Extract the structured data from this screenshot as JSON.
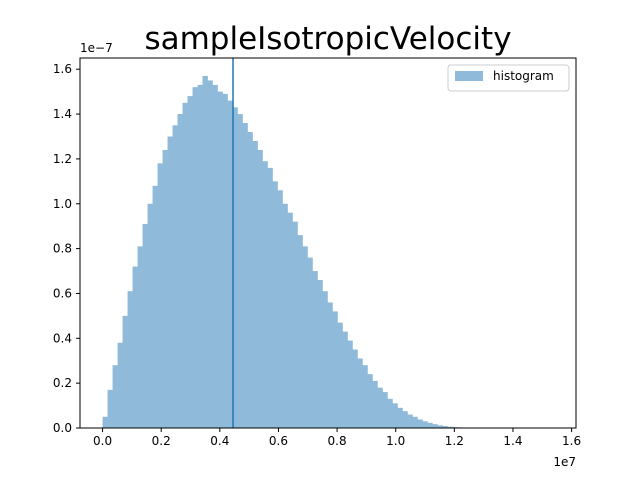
{
  "chart_data": {
    "type": "bar",
    "title": "sampleIsotropicVelocity",
    "xlabel": "",
    "ylabel": "",
    "x_offset_label": "1e7",
    "y_offset_label": "1e−7",
    "xlim": [
      -0.077,
      1.615
    ],
    "ylim": [
      0,
      1.65
    ],
    "x_ticks": [
      0.0,
      0.2,
      0.4,
      0.6,
      0.8,
      1.0,
      1.2,
      1.4,
      1.6
    ],
    "y_ticks": [
      0.0,
      0.2,
      0.4,
      0.6,
      0.8,
      1.0,
      1.2,
      1.4,
      1.6
    ],
    "x_tick_labels": [
      "0.0",
      "0.2",
      "0.4",
      "0.6",
      "0.8",
      "1.0",
      "1.2",
      "1.4",
      "1.6"
    ],
    "y_tick_labels": [
      "0.0",
      "0.2",
      "0.4",
      "0.6",
      "0.8",
      "1.0",
      "1.2",
      "1.4",
      "1.6"
    ],
    "bin_start": 0.0,
    "bin_width": 0.01705,
    "values": [
      0.05,
      0.17,
      0.28,
      0.38,
      0.5,
      0.61,
      0.72,
      0.81,
      0.91,
      1.0,
      1.08,
      1.18,
      1.24,
      1.3,
      1.35,
      1.4,
      1.45,
      1.48,
      1.52,
      1.53,
      1.57,
      1.55,
      1.53,
      1.5,
      1.49,
      1.46,
      1.43,
      1.4,
      1.36,
      1.32,
      1.28,
      1.24,
      1.19,
      1.16,
      1.1,
      1.06,
      1.0,
      0.96,
      0.92,
      0.86,
      0.81,
      0.76,
      0.7,
      0.66,
      0.61,
      0.56,
      0.52,
      0.47,
      0.43,
      0.39,
      0.35,
      0.31,
      0.28,
      0.24,
      0.21,
      0.18,
      0.16,
      0.13,
      0.11,
      0.09,
      0.075,
      0.06,
      0.05,
      0.038,
      0.03,
      0.023,
      0.017,
      0.012,
      0.009,
      0.006,
      0.004,
      0.003,
      0.002,
      0.0015,
      0.001,
      0.0008,
      0.0006,
      0.0004,
      0.0003,
      0.0002,
      0.0001,
      8e-05,
      5e-05,
      3e-05,
      2e-05,
      1e-05,
      1e-05,
      0.0,
      0.0,
      0.0,
      1e-05
    ],
    "vline_x": 0.445,
    "legend": {
      "placement": "top-right",
      "entries": [
        "histogram"
      ]
    },
    "grid": false,
    "colors": {
      "bars": "#8fbad9",
      "vline": "#1f77b4",
      "axes": "#000000"
    }
  }
}
